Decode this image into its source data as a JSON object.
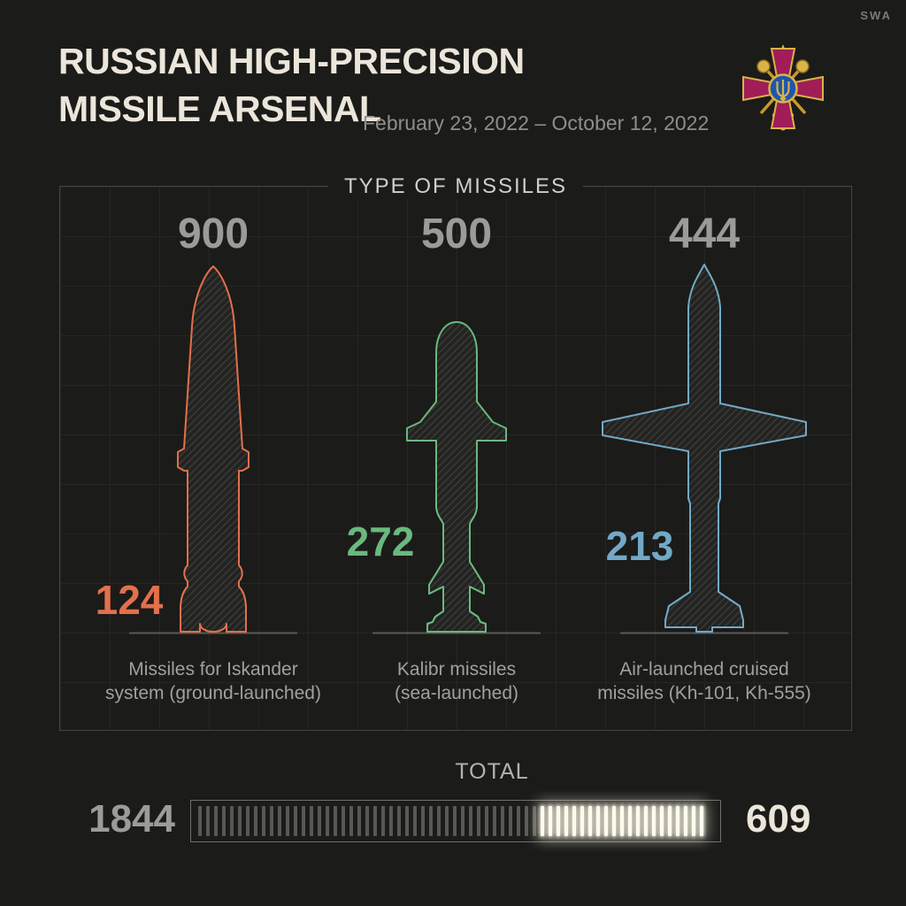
{
  "header": {
    "title_line1": "RUSSIAN HIGH-PRECISION",
    "title_line2": "MISSILE ARSENAL",
    "date_range": "February 23, 2022 – October 12, 2022",
    "watermark": "SWA"
  },
  "panel": {
    "title": "TYPE OF MISSILES"
  },
  "chart_data": {
    "type": "bar",
    "subtype": "pictorial-missile-infographic",
    "title": "TYPE OF MISSILES",
    "period": "February 23, 2022 – October 12, 2022",
    "series": [
      {
        "name": "Missiles for Iskander system (ground-launched)",
        "caption_line1": "Missiles for Iskander",
        "caption_line2": "system (ground-launched)",
        "total": 900,
        "remaining": 124,
        "color": "#e2704c",
        "icon": "ballistic-missile-icon"
      },
      {
        "name": "Kalibr missiles (sea-launched)",
        "caption_line1": "Kalibr missiles",
        "caption_line2": "(sea-launched)",
        "total": 500,
        "remaining": 272,
        "color": "#6ab87f",
        "icon": "cruise-missile-icon"
      },
      {
        "name": "Air-launched cruised missiles (Kh-101, Kh-555)",
        "caption_line1": "Air-launched cruised",
        "caption_line2": "missiles (Kh-101, Kh-555)",
        "total": 444,
        "remaining": 213,
        "color": "#72a9c6",
        "icon": "air-launched-cruise-missile-icon"
      }
    ],
    "total": {
      "label": "TOTAL",
      "initial": 1844,
      "remaining": 609
    }
  },
  "colors": {
    "background": "#1b1b19",
    "title_text": "#ece5da",
    "muted_text": "#9b9b99",
    "bright_tick": "#fffcf0"
  }
}
